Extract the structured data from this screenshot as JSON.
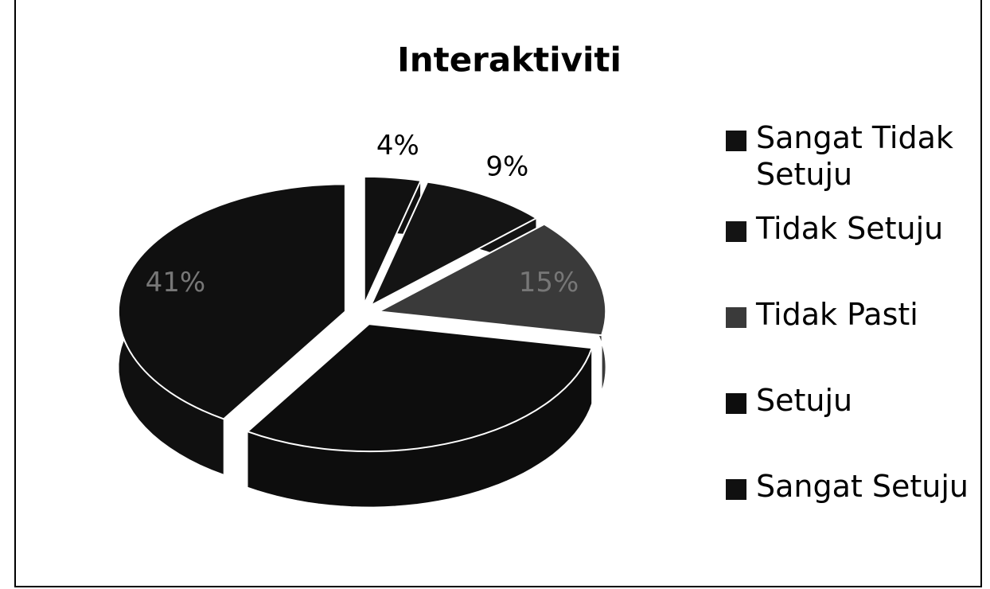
{
  "chart_data": {
    "type": "pie",
    "title": "Interaktiviti",
    "categories": [
      "Sangat Tidak Setuju",
      "Tidak Setuju",
      "Tidak Pasti",
      "Setuju",
      "Sangat Setuju"
    ],
    "values": [
      4,
      9,
      15,
      31,
      41
    ],
    "value_labels": [
      "4%",
      "9%",
      "15%",
      null,
      "41%"
    ],
    "colors": [
      "#111111",
      "#141414",
      "#3a3a3a",
      "#0d0d0d",
      "#101010"
    ],
    "legend": "right"
  }
}
